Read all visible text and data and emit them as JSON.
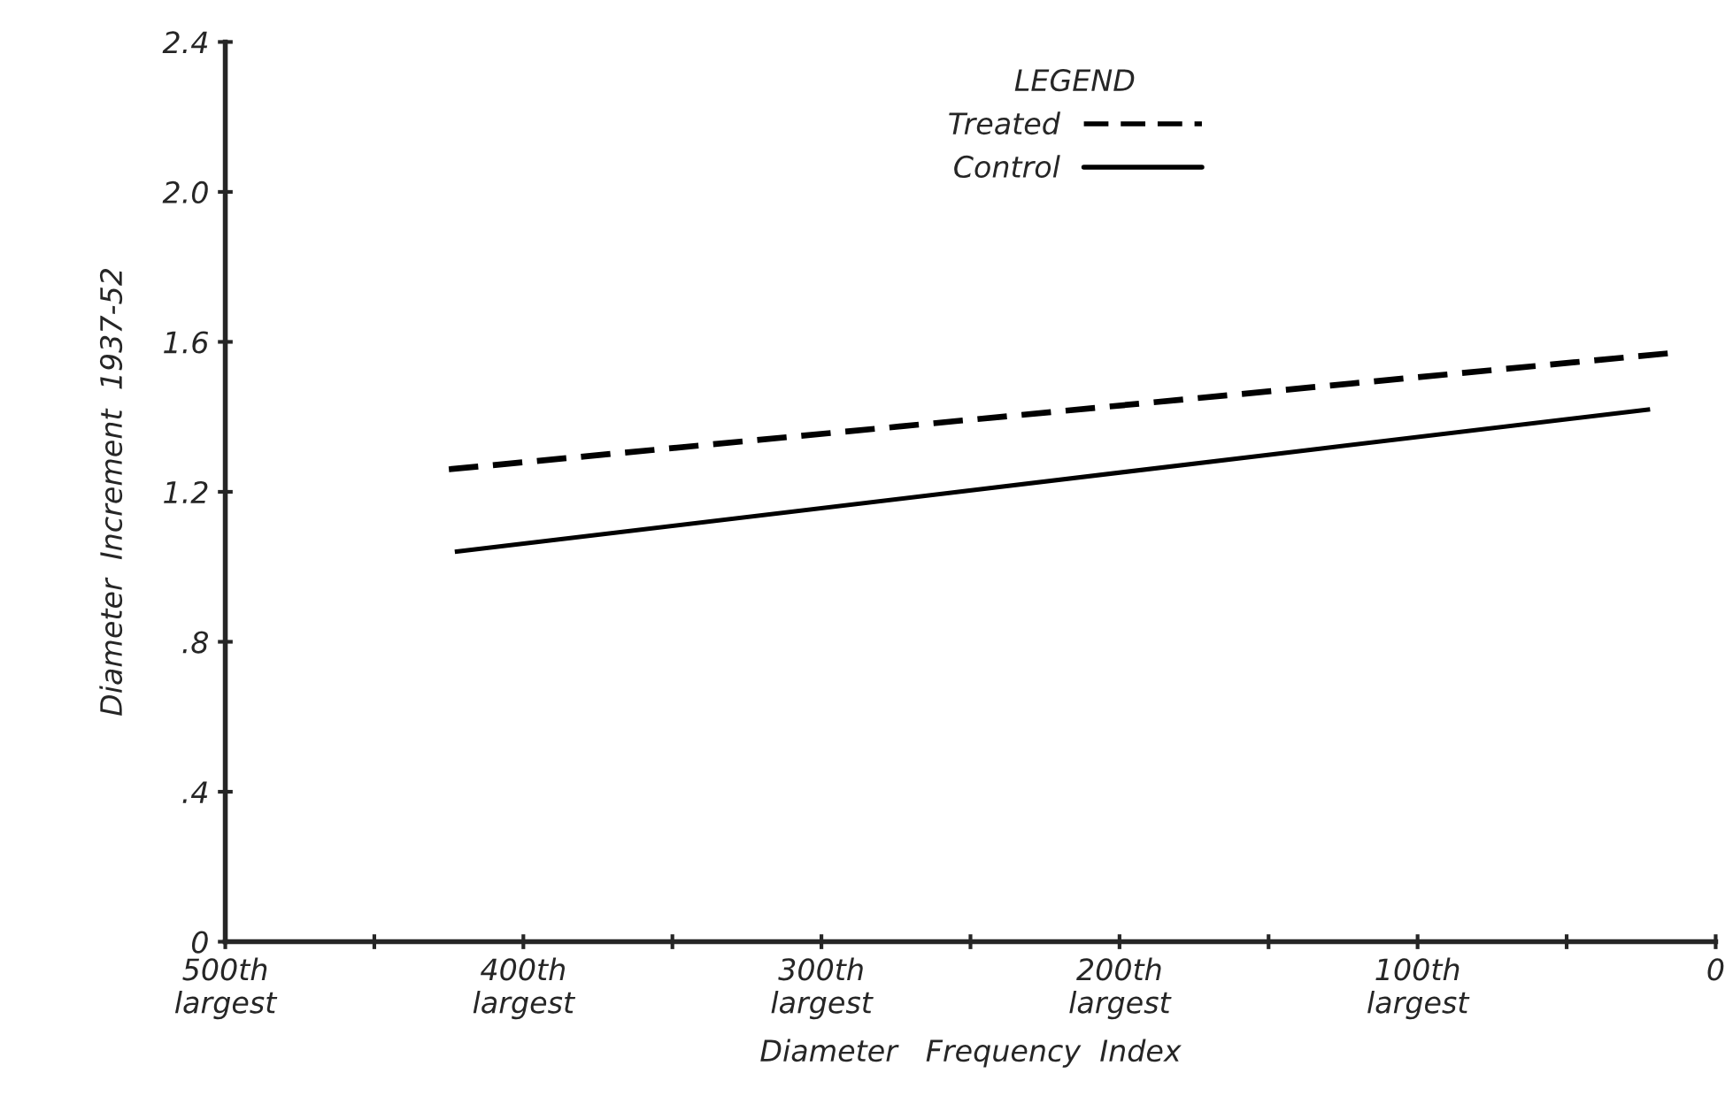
{
  "chart_data": {
    "type": "line",
    "xlabel": "Diameter   Frequency  Index",
    "ylabel": "Diameter  Increment  1937-52",
    "legend_title": "LEGEND",
    "legend": "top",
    "xlim": [
      500,
      0
    ],
    "xticks": [
      {
        "value": 500,
        "label": "500th\nlargest"
      },
      {
        "value": 450,
        "label": null
      },
      {
        "value": 400,
        "label": "400th\nlargest"
      },
      {
        "value": 350,
        "label": null
      },
      {
        "value": 300,
        "label": "300th\nlargest"
      },
      {
        "value": 250,
        "label": null
      },
      {
        "value": 200,
        "label": "200th\nlargest"
      },
      {
        "value": 150,
        "label": null
      },
      {
        "value": 100,
        "label": "100th\nlargest"
      },
      {
        "value": 50,
        "label": null
      },
      {
        "value": 0,
        "label": "0"
      }
    ],
    "ylim": [
      0,
      2.4
    ],
    "yticks": [
      {
        "value": 0,
        "label": "0"
      },
      {
        "value": 0.4,
        "label": ".4"
      },
      {
        "value": 0.8,
        "label": ".8"
      },
      {
        "value": 1.2,
        "label": "1.2"
      },
      {
        "value": 1.6,
        "label": "1.6"
      },
      {
        "value": 2.0,
        "label": "2.0"
      },
      {
        "value": 2.4,
        "label": "2.4"
      }
    ],
    "grid": false,
    "series": [
      {
        "name": "Treated",
        "color": "#000000",
        "line_style": "dashed",
        "x": [
          425,
          15
        ],
        "values": [
          1.26,
          1.57
        ]
      },
      {
        "name": "Control",
        "color": "#000000",
        "line_style": "solid",
        "x": [
          423,
          22
        ],
        "values": [
          1.04,
          1.42
        ]
      }
    ]
  }
}
